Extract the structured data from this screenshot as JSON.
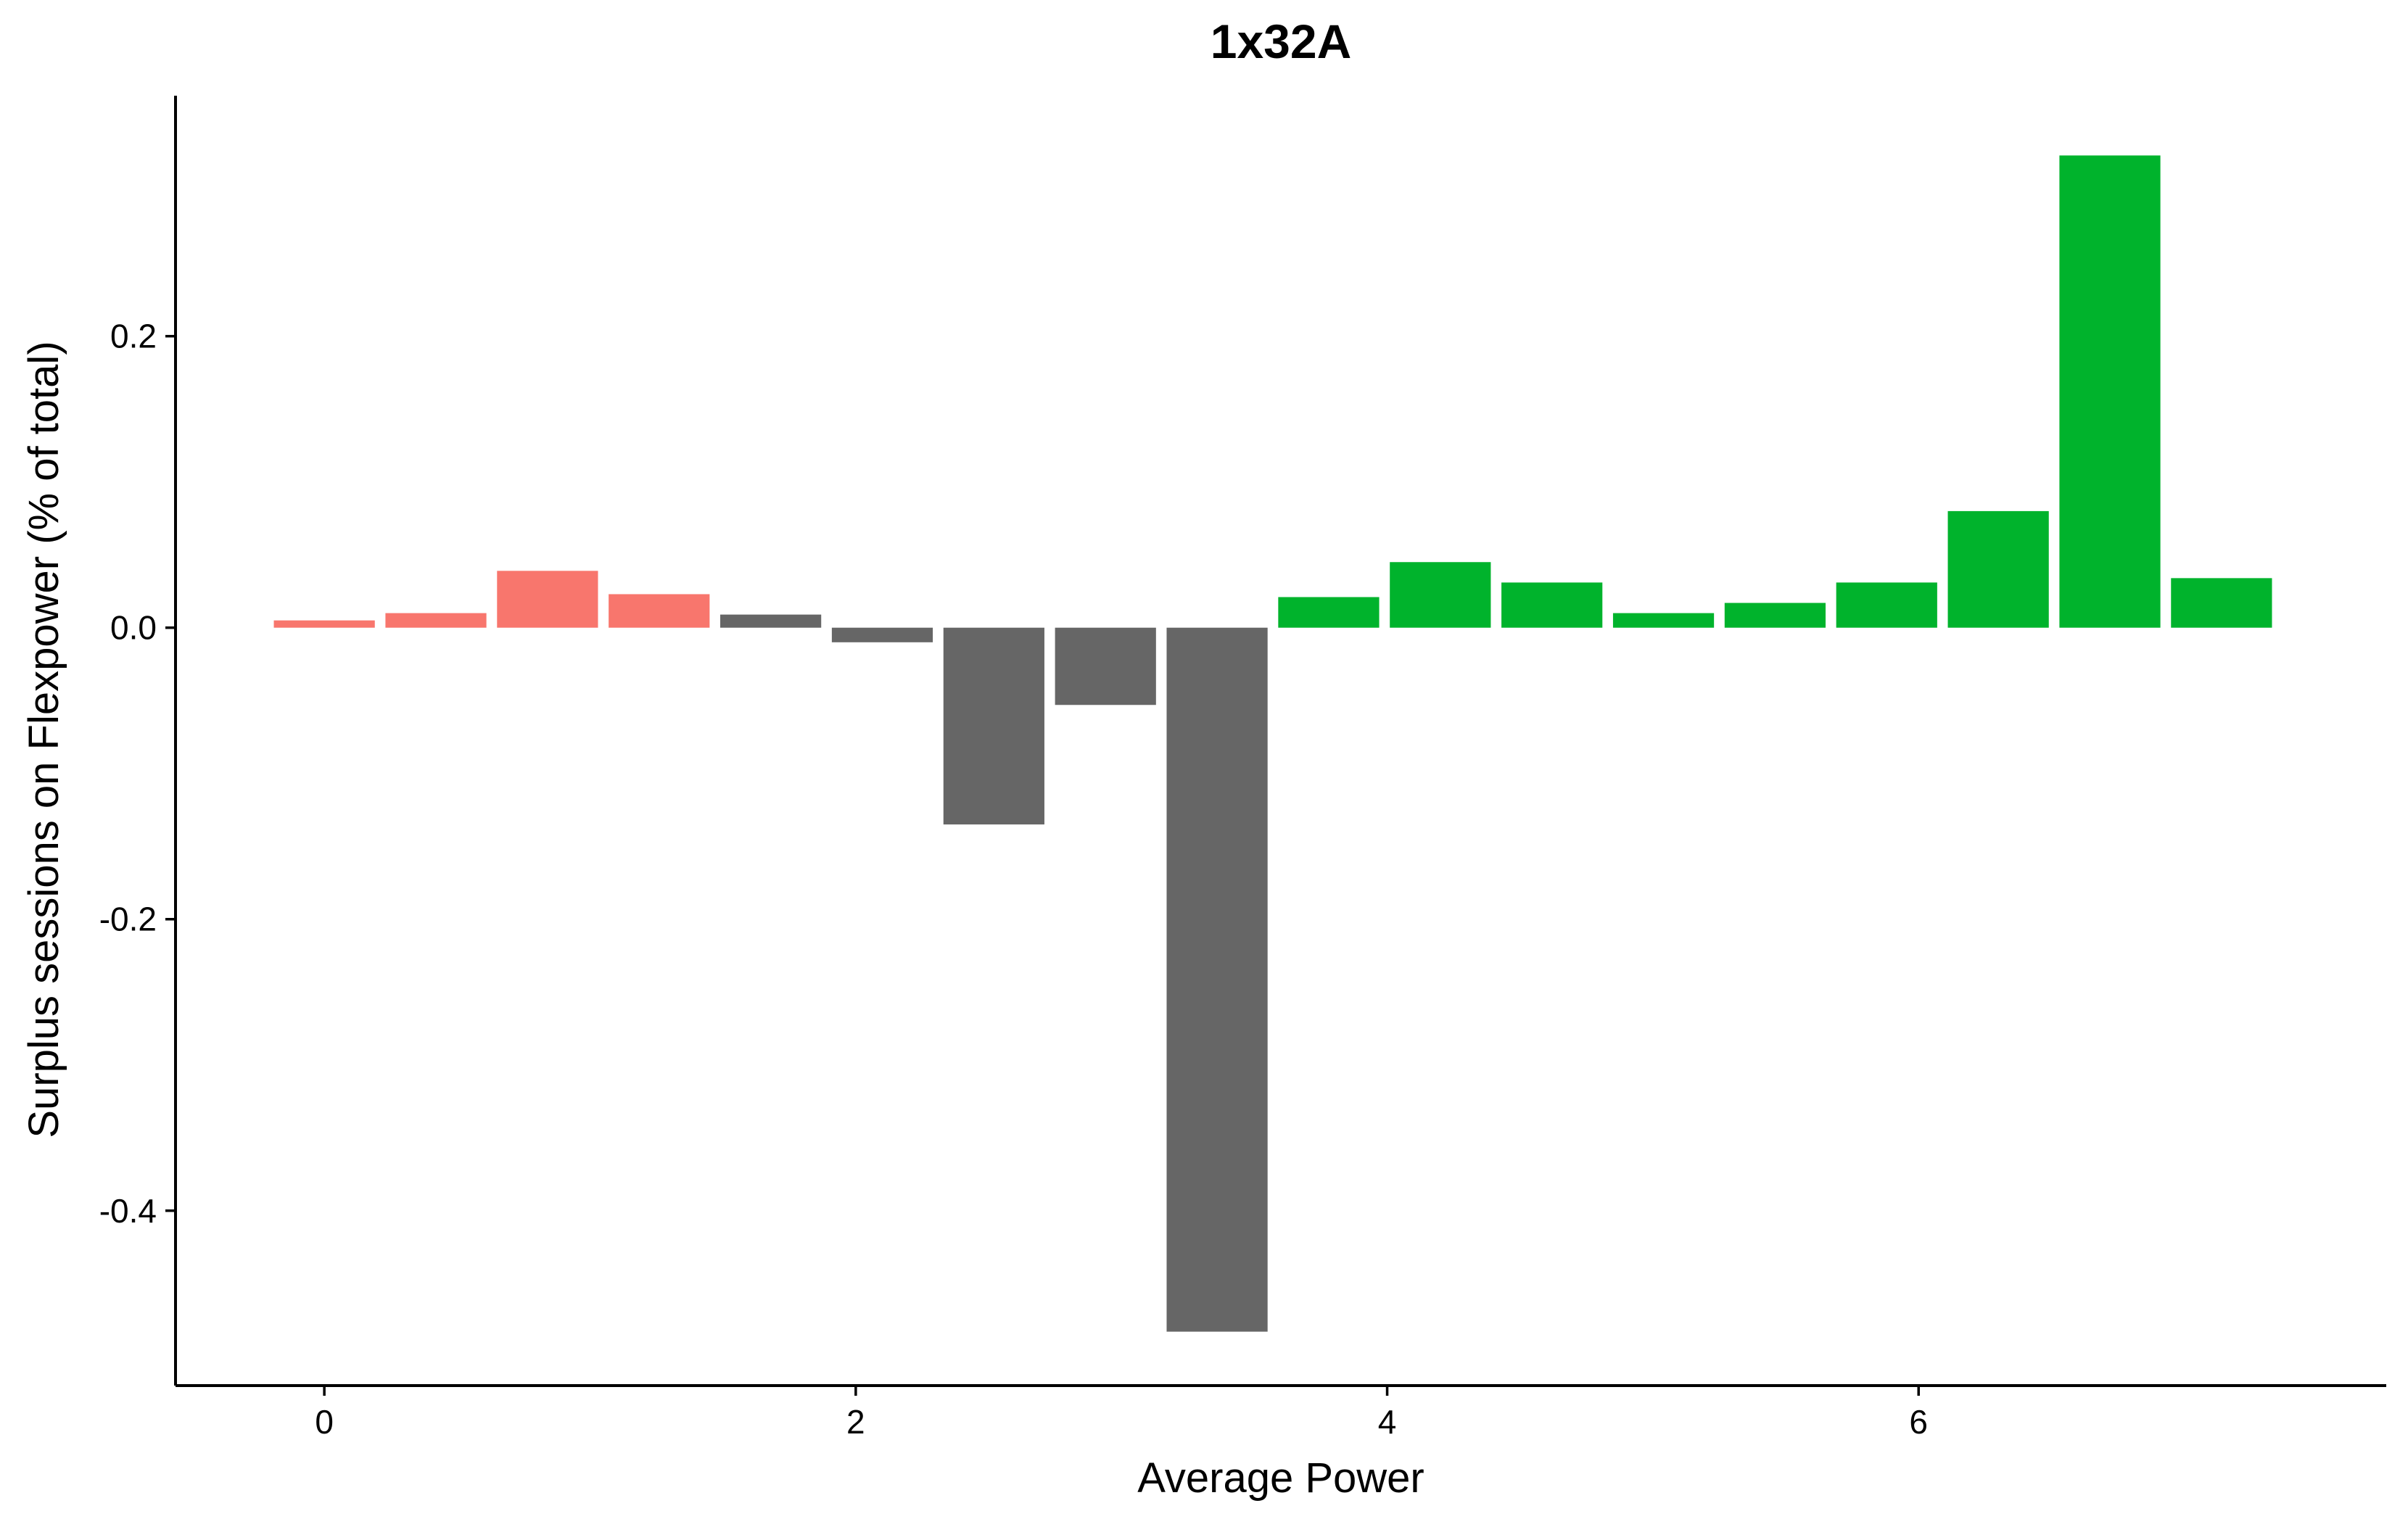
{
  "chart_data": {
    "type": "bar",
    "title": "1x32A",
    "xlabel": "Average Power",
    "ylabel": "Surplus sessions on Flexpower (% of total)",
    "xlim": [
      -0.56,
      7.76
    ],
    "ylim": [
      -0.52,
      0.365
    ],
    "xticks": [
      0,
      2,
      4,
      6
    ],
    "xtick_labels": [
      "0",
      "2",
      "4",
      "6"
    ],
    "yticks": [
      -0.4,
      -0.2,
      0.0,
      0.2
    ],
    "ytick_labels": [
      "-0.4",
      "-0.2",
      "0.0",
      "0.2"
    ],
    "grid": false,
    "legend": "none",
    "bar_width": 0.38,
    "colors": {
      "low": "#F8766D",
      "mid": "#666666",
      "high": "#00B32C"
    },
    "bars": [
      {
        "x": 0.0,
        "value": 0.005,
        "group": "low"
      },
      {
        "x": 0.42,
        "value": 0.01,
        "group": "low"
      },
      {
        "x": 0.84,
        "value": 0.039,
        "group": "low"
      },
      {
        "x": 1.26,
        "value": 0.023,
        "group": "low"
      },
      {
        "x": 1.68,
        "value": 0.009,
        "group": "mid"
      },
      {
        "x": 2.1,
        "value": -0.01,
        "group": "mid"
      },
      {
        "x": 2.52,
        "value": -0.135,
        "group": "mid"
      },
      {
        "x": 2.94,
        "value": -0.053,
        "group": "mid"
      },
      {
        "x": 3.36,
        "value": -0.483,
        "group": "mid"
      },
      {
        "x": 3.78,
        "value": 0.021,
        "group": "high"
      },
      {
        "x": 4.2,
        "value": 0.045,
        "group": "high"
      },
      {
        "x": 4.62,
        "value": 0.031,
        "group": "high"
      },
      {
        "x": 5.04,
        "value": 0.01,
        "group": "high"
      },
      {
        "x": 5.46,
        "value": 0.017,
        "group": "high"
      },
      {
        "x": 5.88,
        "value": 0.031,
        "group": "high"
      },
      {
        "x": 6.3,
        "value": 0.08,
        "group": "high"
      },
      {
        "x": 6.72,
        "value": 0.324,
        "group": "high"
      },
      {
        "x": 7.14,
        "value": 0.034,
        "group": "high"
      }
    ]
  }
}
